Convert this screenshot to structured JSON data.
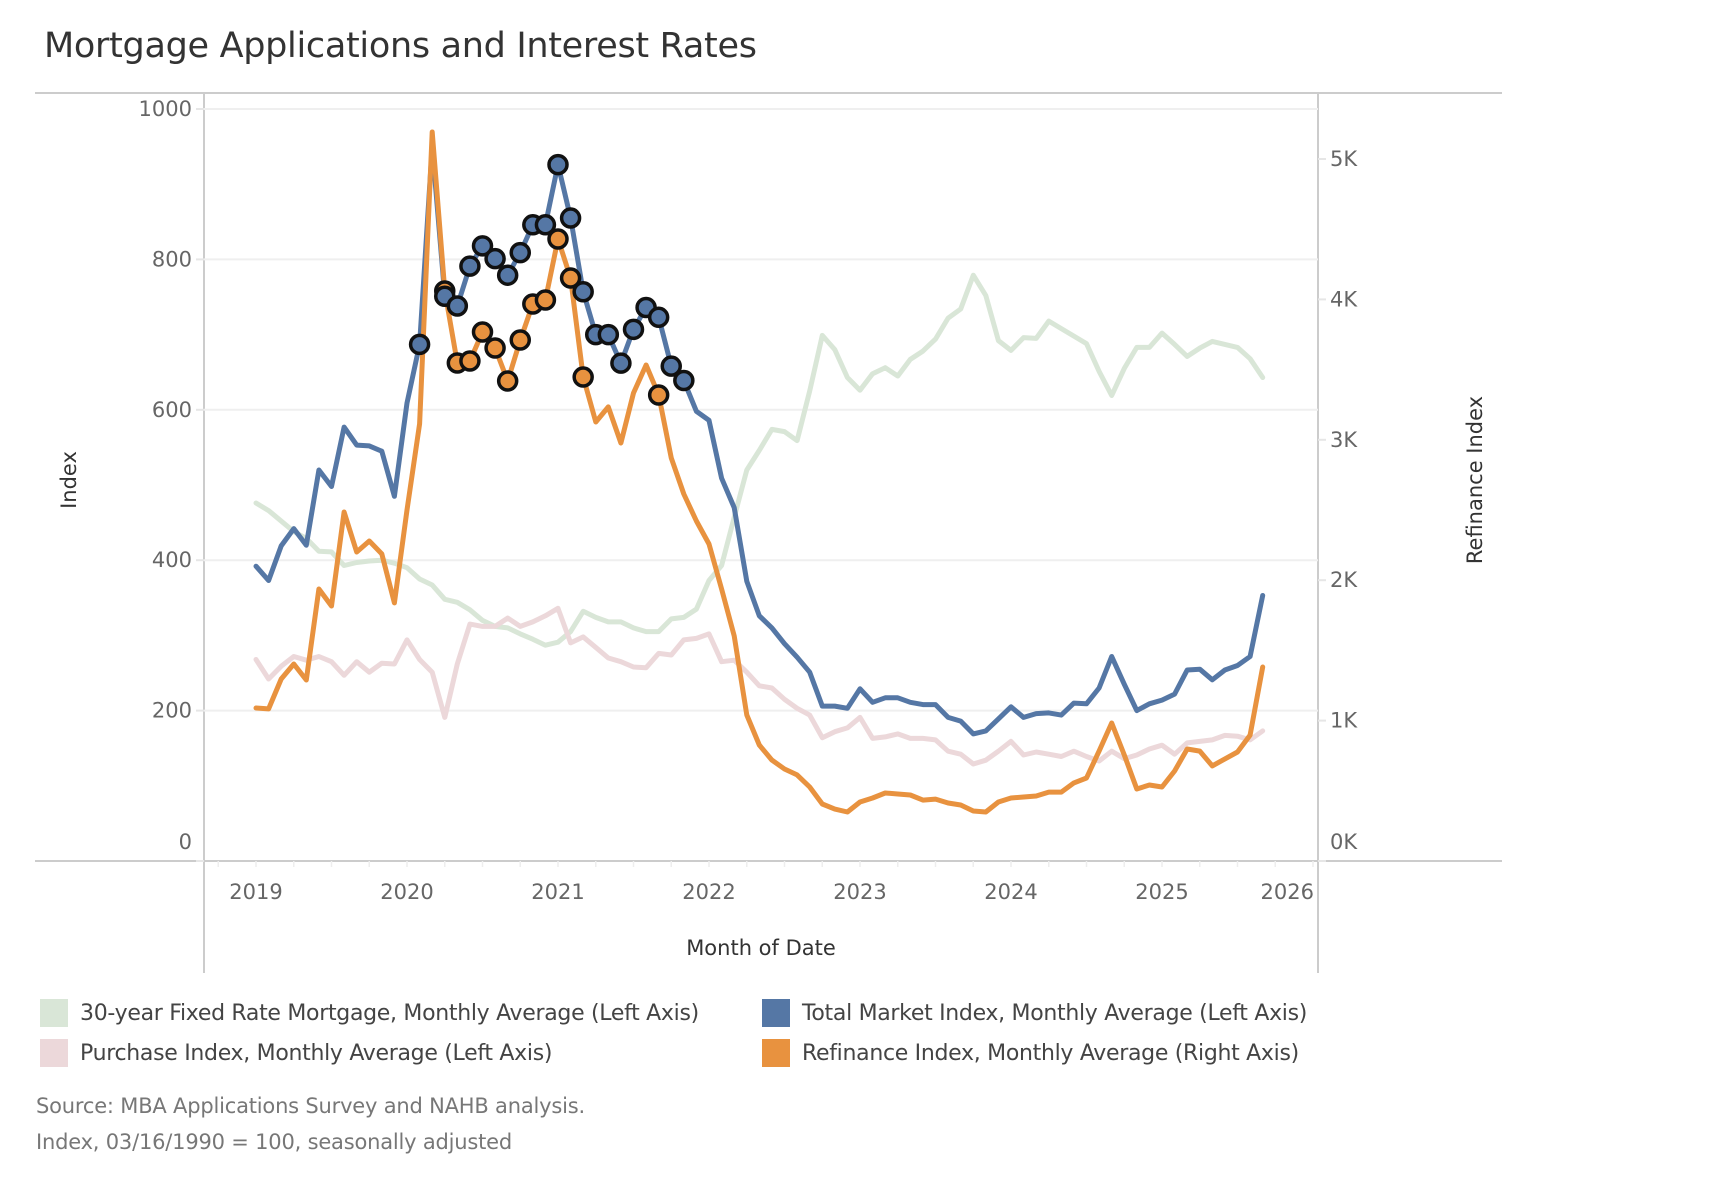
{
  "title": "Mortgage Applications and Interest Rates",
  "footer": {
    "source": "Source: MBA Applications Survey and NAHB analysis.",
    "note": "Index, 03/16/1990 = 100, seasonally adjusted"
  },
  "legend": [
    {
      "label": "30-year Fixed Rate Mortgage, Monthly Average (Left Axis)",
      "color": "#d9e6d7"
    },
    {
      "label": "Total Market Index, Monthly Average (Left Axis)",
      "color": "#5577a5"
    },
    {
      "label": "Purchase Index, Monthly Average (Left Axis)",
      "color": "#ecd8da"
    },
    {
      "label": "Refinance Index, Monthly Average (Right Axis)",
      "color": "#e8923f"
    }
  ],
  "chart_data": {
    "type": "line",
    "title": "Mortgage Applications and Interest Rates",
    "xlabel": "Month of Date",
    "ylabel": "Index",
    "y2label": "Refinance Index",
    "x_start": "2019-01",
    "x_end": "2025-09",
    "x_frequency": "monthly",
    "xlim": [
      "2018-09",
      "2026-01"
    ],
    "x_ticks": [
      "2019",
      "2020",
      "2021",
      "2022",
      "2023",
      "2024",
      "2025",
      "2026"
    ],
    "ylim": [
      0,
      1000
    ],
    "y_ticks": [
      "0",
      "200",
      "400",
      "600",
      "800",
      "1000"
    ],
    "y2lim": [
      0,
      5350
    ],
    "y2_ticks": [
      "0K",
      "1K",
      "2K",
      "3K",
      "4K",
      "5K"
    ],
    "grid": "horizontal",
    "legend_position": "bottom",
    "series": [
      {
        "name": "30-year Fixed Rate Mortgage, Monthly Average (Left Axis)",
        "axis": "left",
        "color": "#d9e6d7",
        "values": [
          476,
          466,
          452,
          438,
          429,
          412,
          411,
          393,
          397,
          399,
          400,
          396,
          390,
          375,
          367,
          348,
          344,
          334,
          320,
          312,
          310,
          302,
          295,
          287,
          291,
          305,
          332,
          324,
          318,
          318,
          310,
          305,
          305,
          322,
          324,
          335,
          373,
          393,
          457,
          520,
          546,
          574,
          571,
          559,
          625,
          699,
          680,
          643,
          626,
          648,
          656,
          645,
          667,
          678,
          694,
          722,
          734,
          779,
          752,
          692,
          679,
          696,
          695,
          718,
          708,
          698,
          688,
          651,
          619,
          655,
          683,
          683,
          702,
          687,
          671,
          682,
          691,
          687,
          683,
          668,
          643
        ]
      },
      {
        "name": "Purchase Index, Monthly Average (Left Axis)",
        "axis": "left",
        "color": "#ecd8da",
        "values": [
          268,
          242,
          259,
          272,
          267,
          272,
          265,
          247,
          265,
          251,
          263,
          262,
          294,
          268,
          251,
          191,
          262,
          315,
          312,
          312,
          323,
          312,
          318,
          326,
          336,
          290,
          298,
          284,
          270,
          265,
          258,
          257,
          276,
          274,
          294,
          296,
          302,
          265,
          267,
          251,
          233,
          230,
          215,
          203,
          194,
          164,
          172,
          177,
          191,
          163,
          165,
          169,
          163,
          163,
          161,
          146,
          142,
          129,
          134,
          146,
          159,
          141,
          145,
          142,
          139,
          146,
          139,
          133,
          146,
          136,
          141,
          149,
          154,
          142,
          157,
          159,
          161,
          167,
          166,
          161,
          173
        ]
      },
      {
        "name": "Total Market Index, Monthly Average (Left Axis)",
        "axis": "left",
        "color": "#5577a5",
        "values": [
          392,
          373,
          419,
          442,
          420,
          520,
          498,
          577,
          553,
          552,
          545,
          485,
          609,
          687,
          950,
          751,
          738,
          791,
          818,
          801,
          779,
          809,
          846,
          846,
          926,
          855,
          757,
          700,
          700,
          662,
          707,
          736,
          723,
          658,
          639,
          598,
          586,
          509,
          470,
          372,
          326,
          310,
          289,
          271,
          251,
          206,
          206,
          203,
          229,
          211,
          217,
          217,
          211,
          208,
          208,
          191,
          186,
          169,
          173,
          189,
          205,
          191,
          196,
          197,
          194,
          210,
          209,
          230,
          272,
          235,
          200,
          209,
          214,
          222,
          254,
          255,
          241,
          254,
          260,
          272,
          353
        ],
        "highlighted_months": [
          "2020-02",
          "2020-04",
          "2020-05",
          "2020-06",
          "2020-07",
          "2020-08",
          "2020-09",
          "2020-10",
          "2020-11",
          "2020-12",
          "2021-01",
          "2021-02",
          "2021-03",
          "2021-04",
          "2021-05",
          "2021-06",
          "2021-07",
          "2021-08",
          "2021-09",
          "2021-10",
          "2021-11"
        ]
      },
      {
        "name": "Refinance Index, Monthly Average (Right Axis)",
        "axis": "right",
        "color": "#e8923f",
        "values": [
          1090,
          1083,
          1296,
          1403,
          1289,
          1937,
          1816,
          2486,
          2201,
          2279,
          2187,
          1838,
          2500,
          3113,
          5192,
          4060,
          3547,
          3561,
          3768,
          3654,
          3419,
          3711,
          3967,
          3996,
          4430,
          4152,
          3447,
          3127,
          3234,
          2977,
          3333,
          3533,
          3319,
          2870,
          2614,
          2422,
          2258,
          1937,
          1603,
          1040,
          826,
          719,
          655,
          613,
          527,
          406,
          370,
          349,
          420,
          449,
          484,
          477,
          470,
          434,
          441,
          413,
          399,
          356,
          349,
          420,
          449,
          456,
          463,
          491,
          491,
          556,
          591,
          783,
          983,
          755,
          513,
          541,
          527,
          641,
          798,
          783,
          677,
          727,
          776,
          897,
          1382
        ],
        "highlighted_months": [
          "2020-04",
          "2020-05",
          "2020-06",
          "2020-07",
          "2020-08",
          "2020-09",
          "2020-10",
          "2020-11",
          "2020-12",
          "2021-01",
          "2021-02",
          "2021-03",
          "2021-09"
        ]
      }
    ]
  }
}
